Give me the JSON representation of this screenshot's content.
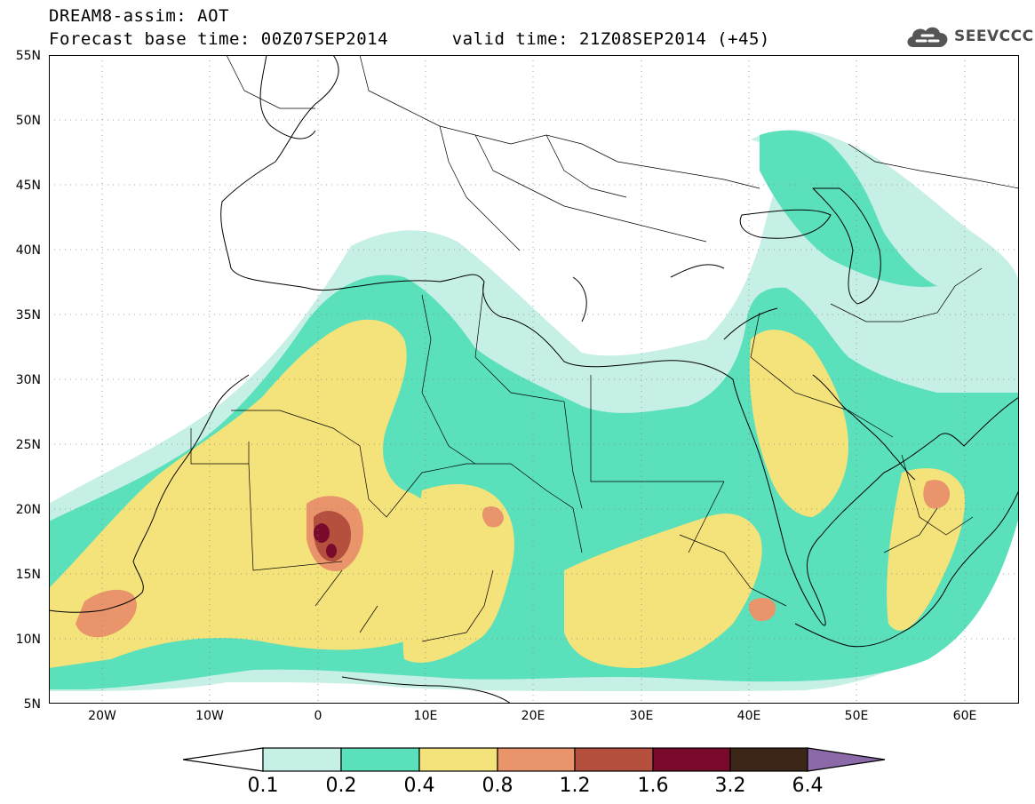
{
  "header": {
    "line1": "DREAM8-assim: AOT",
    "base_label": "Forecast base time: 00Z07SEP2014",
    "valid_label": "valid time: 21Z08SEP2014 (+45)",
    "brand": "SEEVCCC",
    "brand_icon": "cloud-icon"
  },
  "axes": {
    "lat_labels": [
      "55N",
      "50N",
      "45N",
      "40N",
      "35N",
      "30N",
      "25N",
      "20N",
      "15N",
      "10N",
      "5N"
    ],
    "lon_labels": [
      "20W",
      "10W",
      "0",
      "10E",
      "20E",
      "30E",
      "40E",
      "50E",
      "60E"
    ],
    "lon_range": [
      -25,
      65
    ],
    "lat_range": [
      5,
      55
    ],
    "grid": "dotted"
  },
  "colorbar": {
    "labels": [
      "0.1",
      "0.2",
      "0.4",
      "0.8",
      "1.2",
      "1.6",
      "3.2",
      "6.4"
    ],
    "colors": [
      "#ffffff",
      "#c6efe6",
      "#5ae0bb",
      "#f4e27a",
      "#e9946a",
      "#b5503f",
      "#7a0a2c",
      "#3c2617",
      "#8c6aaa"
    ]
  },
  "colors": {
    "c1": "#c6efe6",
    "c2": "#5ae0bb",
    "c3": "#f4e27a",
    "c4": "#e9946a",
    "c5": "#b5503f",
    "c6": "#7a0a2c"
  }
}
